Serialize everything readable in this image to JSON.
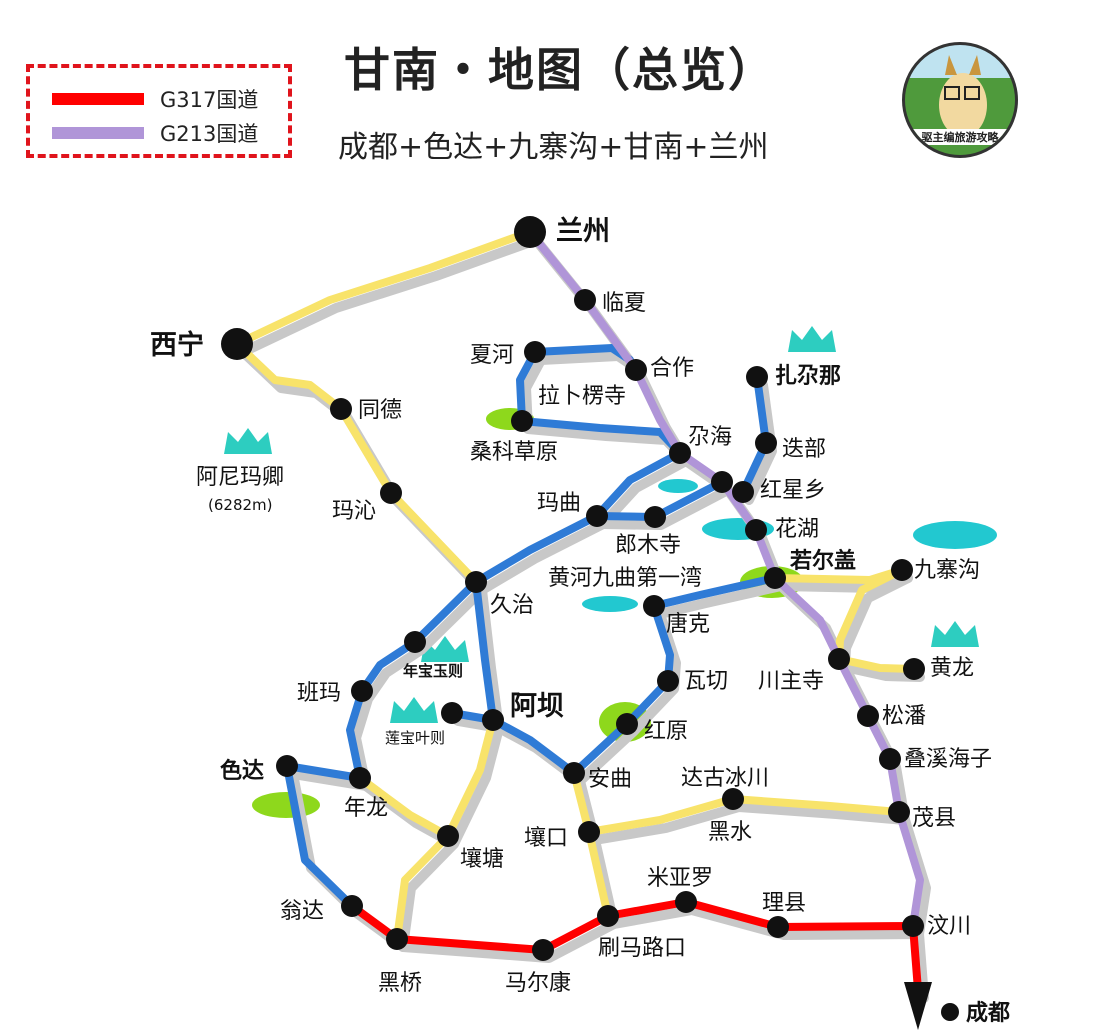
{
  "legend": {
    "items": [
      {
        "label": "G317国道",
        "color": "#ff0000"
      },
      {
        "label": "G213国道",
        "color": "#b095d8"
      }
    ]
  },
  "header": {
    "title": "甘南・地图（总览）",
    "subtitle": "成都+色达+九寨沟+甘南+兰州"
  },
  "logo": {
    "text": "驱主编旅游攻略"
  },
  "colors": {
    "yellow_road": "#f8e36a",
    "blue_road": "#2f7bd6",
    "purple_road": "#b095d8",
    "red_road": "#ff0000",
    "shadow": "#c8c8c8",
    "lake": "#22c8d0",
    "grass": "#8ed81c",
    "mountain": "#2dcdc0"
  },
  "places": [
    "兰州",
    "临夏",
    "合作",
    "夏河",
    "桑科草原",
    "拉卜楞寺",
    "尕海",
    "扎尕那",
    "迭部",
    "红星乡",
    "花湖",
    "郎木寺",
    "玛曲",
    "若尔盖",
    "九寨沟",
    "黄龙",
    "川主寺",
    "松潘",
    "叠溪海子",
    "茂县",
    "汶川",
    "成都",
    "西宁",
    "同德",
    "玛沁",
    "久治",
    "阿尼玛卿",
    "(6282m)",
    "年宝玉则",
    "唐克",
    "黄河九曲第一湾",
    "瓦切",
    "红原",
    "阿坝",
    "莲宝叶则",
    "班玛",
    "色达",
    "年龙",
    "壤塘",
    "安曲",
    "壤口",
    "达古冰川",
    "黑水",
    "翁达",
    "黑桥",
    "马尔康",
    "刷马路口",
    "米亚罗",
    "理县"
  ]
}
